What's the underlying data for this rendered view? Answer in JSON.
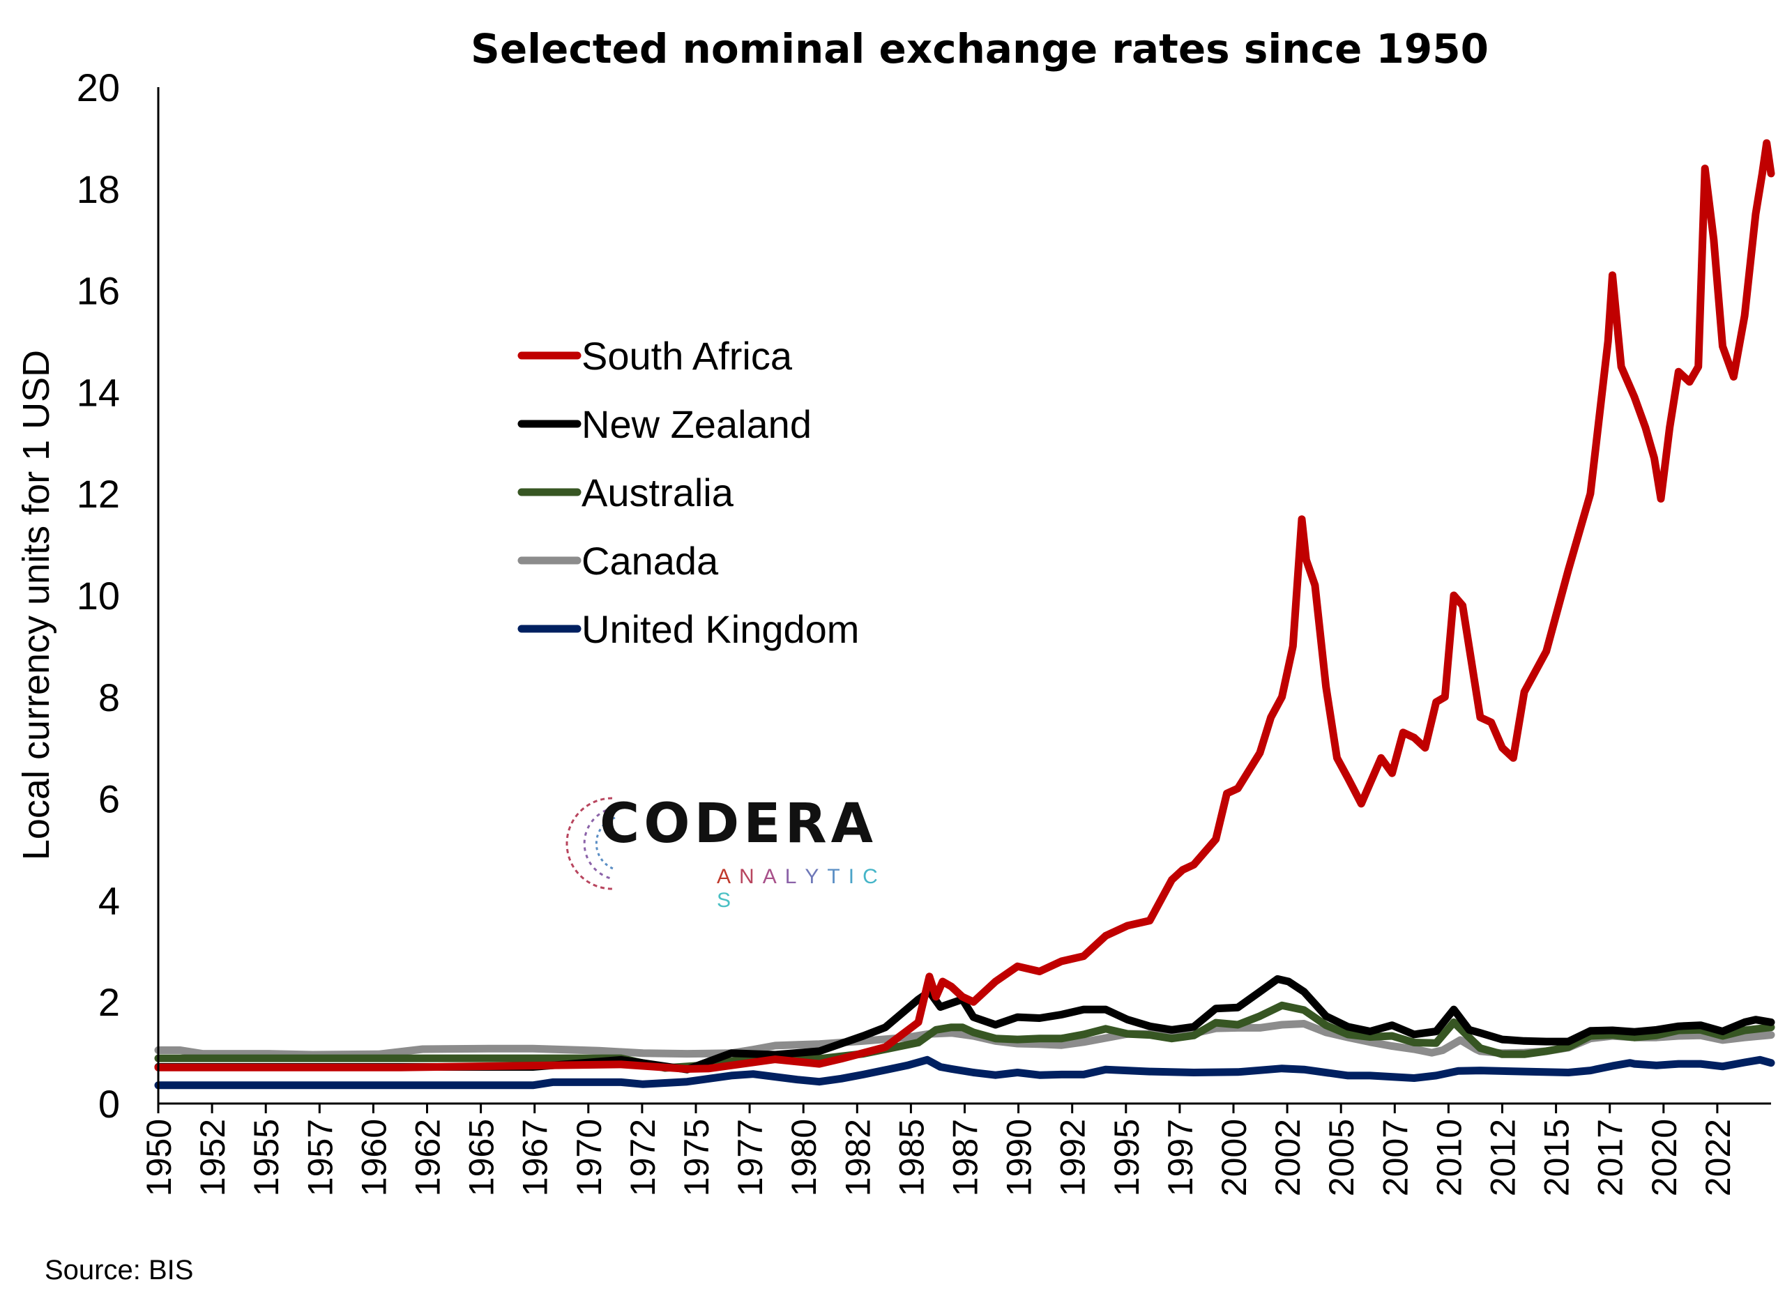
{
  "chart_data": {
    "type": "line",
    "title": "Selected nominal exchange rates since 1950",
    "xlabel": "",
    "ylabel": "Local currency units for 1 USD",
    "ylim": [
      0,
      20
    ],
    "xlim": [
      1950,
      2023.2
    ],
    "yticks": [
      "0",
      "2",
      "4",
      "6",
      "8",
      "10",
      "12",
      "14",
      "16",
      "18",
      "20"
    ],
    "xticks": [
      "1950",
      "1952",
      "1955",
      "1957",
      "1960",
      "1962",
      "1965",
      "1967",
      "1970",
      "1972",
      "1975",
      "1977",
      "1980",
      "1982",
      "1985",
      "1987",
      "1990",
      "1992",
      "1995",
      "1997",
      "2000",
      "2002",
      "2005",
      "2007",
      "2010",
      "2012",
      "2015",
      "2017",
      "2020",
      "2022"
    ],
    "grid": false,
    "legend_position": "upper-left-center",
    "series": [
      {
        "name": "South Africa",
        "color": "#c00000",
        "x": [
          1950,
          1961,
          1971,
          1974,
          1975,
          1978,
          1980,
          1981,
          1983,
          1984.5,
          1985,
          1985.3,
          1985.6,
          1986,
          1986.5,
          1987,
          1988,
          1989,
          1990,
          1991,
          1992,
          1993,
          1994,
          1995,
          1996,
          1996.5,
          1997,
          1998,
          1998.5,
          1999,
          2000,
          2000.5,
          2001,
          2001.5,
          2001.9,
          2002.1,
          2002.5,
          2003,
          2003.5,
          2004,
          2004.6,
          2005,
          2005.5,
          2006,
          2006.5,
          2007,
          2007.5,
          2008,
          2008.4,
          2008.8,
          2009.2,
          2010,
          2010.5,
          2011,
          2011.5,
          2012,
          2013,
          2014,
          2015,
          2015.8,
          2016.0,
          2016.4,
          2017,
          2017.5,
          2017.9,
          2018.2,
          2018.6,
          2019,
          2019.5,
          2019.9,
          2020.2,
          2020.6,
          2021.0,
          2021.5,
          2022,
          2022.5,
          2022.8,
          2023.0,
          2023.2
        ],
        "y": [
          0.71,
          0.71,
          0.77,
          0.68,
          0.69,
          0.87,
          0.78,
          0.88,
          1.11,
          1.6,
          2.5,
          2.1,
          2.4,
          2.3,
          2.1,
          2.0,
          2.4,
          2.7,
          2.6,
          2.8,
          2.9,
          3.3,
          3.5,
          3.6,
          4.4,
          4.6,
          4.7,
          5.2,
          6.1,
          6.2,
          6.9,
          7.6,
          8.0,
          9.0,
          11.5,
          10.7,
          10.2,
          8.2,
          6.8,
          6.4,
          5.9,
          6.3,
          6.8,
          6.5,
          7.3,
          7.2,
          7.0,
          7.9,
          8.0,
          10.0,
          9.8,
          7.6,
          7.5,
          7.0,
          6.8,
          8.1,
          8.9,
          10.5,
          12.0,
          15.0,
          16.3,
          14.5,
          13.9,
          13.3,
          12.7,
          11.9,
          13.3,
          14.4,
          14.2,
          14.5,
          18.4,
          17.0,
          14.9,
          14.3,
          15.5,
          17.5,
          18.3,
          18.9,
          18.3
        ]
      },
      {
        "name": "New Zealand",
        "color": "#000000",
        "x": [
          1950,
          1967,
          1971,
          1974,
          1976,
          1978,
          1980,
          1982,
          1983,
          1984.5,
          1985,
          1985.5,
          1986.5,
          1987,
          1988,
          1989,
          1990,
          1991,
          1992,
          1993,
          1994,
          1995,
          1996,
          1997,
          1998,
          1999,
          2000,
          2000.8,
          2001.3,
          2002,
          2003,
          2004,
          2005,
          2006,
          2007,
          2008,
          2008.8,
          2009.5,
          2010,
          2011,
          2012,
          2013,
          2014,
          2015,
          2016,
          2017,
          2018,
          2019,
          2020,
          2021,
          2022,
          2022.5,
          2023.2
        ],
        "y": [
          0.72,
          0.72,
          0.86,
          0.67,
          0.99,
          0.96,
          1.03,
          1.33,
          1.5,
          2.05,
          2.2,
          1.9,
          2.05,
          1.7,
          1.55,
          1.7,
          1.68,
          1.75,
          1.85,
          1.85,
          1.65,
          1.52,
          1.45,
          1.51,
          1.87,
          1.89,
          2.2,
          2.45,
          2.4,
          2.2,
          1.72,
          1.51,
          1.42,
          1.54,
          1.36,
          1.42,
          1.85,
          1.45,
          1.39,
          1.26,
          1.23,
          1.22,
          1.22,
          1.43,
          1.44,
          1.41,
          1.45,
          1.52,
          1.54,
          1.42,
          1.6,
          1.65,
          1.6
        ]
      },
      {
        "name": "Australia",
        "color": "#375623",
        "x": [
          1950,
          1967,
          1971,
          1973,
          1975,
          1977,
          1980,
          1982,
          1984.5,
          1985.3,
          1986,
          1986.5,
          1987,
          1988,
          1989,
          1990,
          1991,
          1992,
          1993,
          1994,
          1995,
          1996,
          1997,
          1998,
          1999,
          2000,
          2001,
          2002,
          2003,
          2004,
          2005,
          2006,
          2007,
          2008,
          2008.8,
          2009.5,
          2010,
          2011,
          2012,
          2013,
          2014,
          2015,
          2016,
          2017,
          2018,
          2019,
          2020,
          2021,
          2022,
          2023.2
        ],
        "y": [
          0.89,
          0.89,
          0.89,
          0.7,
          0.76,
          0.9,
          0.88,
          0.98,
          1.2,
          1.45,
          1.5,
          1.5,
          1.4,
          1.28,
          1.26,
          1.28,
          1.28,
          1.36,
          1.47,
          1.37,
          1.35,
          1.28,
          1.34,
          1.59,
          1.55,
          1.72,
          1.93,
          1.84,
          1.54,
          1.36,
          1.31,
          1.33,
          1.2,
          1.19,
          1.6,
          1.3,
          1.09,
          0.97,
          0.97,
          1.03,
          1.11,
          1.33,
          1.35,
          1.3,
          1.34,
          1.44,
          1.45,
          1.33,
          1.44,
          1.5
        ]
      },
      {
        "name": "Canada",
        "color": "#8c8c8c",
        "x": [
          1950,
          1951,
          1952,
          1955,
          1957,
          1960,
          1962,
          1965,
          1967,
          1970,
          1972,
          1974,
          1976,
          1977,
          1978,
          1980,
          1982,
          1984,
          1985,
          1986,
          1987,
          1988,
          1989,
          1990,
          1991,
          1992,
          1993,
          1994,
          1995,
          1996,
          1997,
          1998,
          1999,
          2000,
          2001,
          2002,
          2003,
          2004,
          2005,
          2006,
          2007,
          2007.8,
          2008.3,
          2009.1,
          2009.8,
          2010,
          2011,
          2012,
          2013,
          2014,
          2015,
          2016,
          2017,
          2018,
          2019,
          2020,
          2021,
          2022,
          2023.2
        ],
        "y": [
          1.05,
          1.05,
          0.98,
          0.98,
          0.96,
          0.97,
          1.07,
          1.08,
          1.08,
          1.04,
          0.99,
          0.98,
          0.99,
          1.06,
          1.14,
          1.17,
          1.23,
          1.3,
          1.37,
          1.39,
          1.33,
          1.23,
          1.18,
          1.17,
          1.15,
          1.21,
          1.29,
          1.37,
          1.37,
          1.36,
          1.38,
          1.48,
          1.49,
          1.49,
          1.55,
          1.57,
          1.4,
          1.3,
          1.21,
          1.13,
          1.07,
          1.0,
          1.05,
          1.25,
          1.07,
          1.03,
          0.99,
          1.0,
          1.03,
          1.1,
          1.28,
          1.33,
          1.3,
          1.3,
          1.33,
          1.34,
          1.25,
          1.3,
          1.35
        ]
      },
      {
        "name": "United Kingdom",
        "color": "#002060",
        "x": [
          1950,
          1967,
          1967.9,
          1971,
          1972,
          1974,
          1976,
          1977,
          1979,
          1980,
          1981,
          1982,
          1983,
          1984,
          1984.9,
          1985.5,
          1986,
          1987,
          1988,
          1989,
          1990,
          1991,
          1992,
          1993,
          1995,
          1997,
          1999,
          2001,
          2002,
          2004,
          2005,
          2007,
          2008,
          2009,
          2010,
          2012,
          2014,
          2015,
          2016,
          2016.8,
          2017,
          2018,
          2019,
          2020,
          2021,
          2022,
          2022.7,
          2023.2
        ],
        "y": [
          0.36,
          0.36,
          0.42,
          0.42,
          0.38,
          0.43,
          0.55,
          0.58,
          0.47,
          0.43,
          0.49,
          0.57,
          0.66,
          0.75,
          0.86,
          0.72,
          0.68,
          0.61,
          0.56,
          0.61,
          0.56,
          0.57,
          0.57,
          0.67,
          0.63,
          0.61,
          0.62,
          0.69,
          0.67,
          0.55,
          0.55,
          0.5,
          0.55,
          0.64,
          0.65,
          0.63,
          0.61,
          0.65,
          0.74,
          0.8,
          0.78,
          0.75,
          0.78,
          0.78,
          0.73,
          0.81,
          0.86,
          0.8
        ]
      }
    ],
    "legend": [
      "South Africa",
      "New Zealand",
      "Australia",
      "Canada",
      "United Kingdom"
    ]
  },
  "logo": {
    "word": "CODERA",
    "sub": "ANALYTICS",
    "sub_colors": [
      "#c0392b",
      "#b8455e",
      "#a8508a",
      "#8b62a8",
      "#6e78b8",
      "#5a8ec4",
      "#4aa3c8",
      "#45b5c8",
      "#4ac0c4"
    ]
  },
  "source": "Source:  BIS"
}
